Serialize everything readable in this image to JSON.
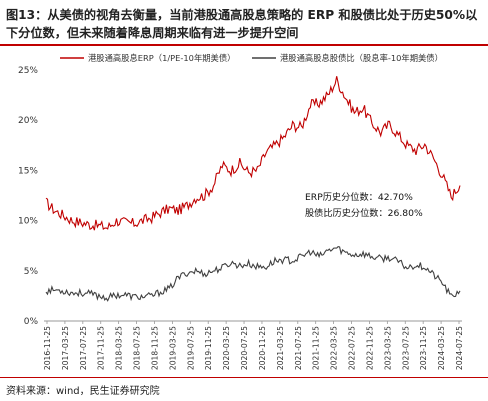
{
  "title": "图13：从美债的视角去衡量，当前港股通高股息策略的 ERP 和股债比处于历史50%以下分位数，但未来随着降息周期来临有进一步提升空间",
  "source": "资料来源：wind，民生证券研究院",
  "colors": {
    "erp": "#c00000",
    "ratio": "#404040",
    "accent": "#c00000"
  },
  "chart_data": {
    "type": "line",
    "title": "",
    "xlabel": "",
    "ylabel": "",
    "ylim": [
      0,
      25
    ],
    "y_ticks": [
      "0%",
      "5%",
      "10%",
      "15%",
      "20%",
      "25%"
    ],
    "x_ticks": [
      "2016-11-25",
      "2017-03-25",
      "2017-07-25",
      "2017-11-25",
      "2018-03-25",
      "2018-07-25",
      "2018-11-25",
      "2019-03-25",
      "2019-07-25",
      "2019-11-25",
      "2020-03-25",
      "2020-07-25",
      "2020-11-25",
      "2021-03-25",
      "2021-07-25",
      "2021-11-25",
      "2022-03-25",
      "2022-07-25",
      "2022-11-25",
      "2023-03-25",
      "2023-07-25",
      "2023-11-25",
      "2024-03-25",
      "2024-07-25"
    ],
    "legend_position": "top",
    "annotations": [
      "ERP历史分位数：42.70%",
      "股债比历史分位数：26.80%"
    ],
    "x": [
      "2016-11",
      "2017-01",
      "2017-03",
      "2017-05",
      "2017-07",
      "2017-09",
      "2017-11",
      "2018-01",
      "2018-03",
      "2018-05",
      "2018-07",
      "2018-09",
      "2018-11",
      "2019-01",
      "2019-03",
      "2019-05",
      "2019-07",
      "2019-09",
      "2019-11",
      "2020-01",
      "2020-03",
      "2020-05",
      "2020-07",
      "2020-09",
      "2020-11",
      "2021-01",
      "2021-03",
      "2021-05",
      "2021-07",
      "2021-09",
      "2021-11",
      "2022-01",
      "2022-03",
      "2022-05",
      "2022-07",
      "2022-09",
      "2022-11",
      "2023-01",
      "2023-03",
      "2023-05",
      "2023-07",
      "2023-09",
      "2023-11",
      "2024-01",
      "2024-03",
      "2024-05",
      "2024-07",
      "2024-08"
    ],
    "series": [
      {
        "name": "港股通高股息ERP（1/PE-10年期美债）",
        "values": [
          11.8,
          11.0,
          10.5,
          10.0,
          9.8,
          9.6,
          9.5,
          9.3,
          10.0,
          9.8,
          9.7,
          10.0,
          10.3,
          10.8,
          11.2,
          11.0,
          11.5,
          12.3,
          12.5,
          13.5,
          15.5,
          15.0,
          15.7,
          14.8,
          15.0,
          16.8,
          17.5,
          18.3,
          19.5,
          19.3,
          21.5,
          21.7,
          22.5,
          24.0,
          22.3,
          20.8,
          21.2,
          19.7,
          18.8,
          19.6,
          18.5,
          17.5,
          17.0,
          17.6,
          16.2,
          14.5,
          12.4,
          13.5
        ]
      },
      {
        "name": "港股通高股息股债比（股息率-10年期美债）",
        "values": [
          3.0,
          3.1,
          3.0,
          2.8,
          2.8,
          2.7,
          2.5,
          2.3,
          2.6,
          2.6,
          2.4,
          2.4,
          2.5,
          2.9,
          3.2,
          4.3,
          4.8,
          5.0,
          4.7,
          5.0,
          5.3,
          5.8,
          5.5,
          5.7,
          5.4,
          5.4,
          6.0,
          6.1,
          6.0,
          6.4,
          6.9,
          6.4,
          7.0,
          7.3,
          6.8,
          6.6,
          6.7,
          6.4,
          6.2,
          6.3,
          5.9,
          5.3,
          5.6,
          5.4,
          4.6,
          3.8,
          2.4,
          3.0
        ]
      }
    ]
  }
}
